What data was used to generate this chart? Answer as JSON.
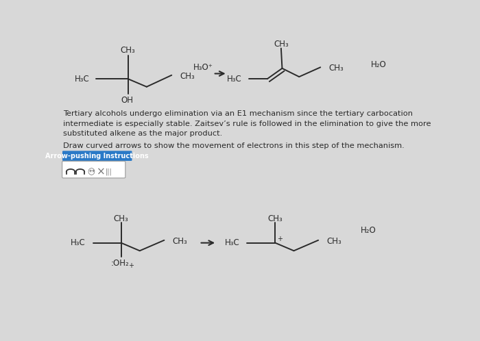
{
  "bg_color": "#d8d8d8",
  "text_color": "#2a2a2a",
  "paragraph1": "Tertiary alcohols undergo elimination via an E1 mechanism since the tertiary carbocation\nintermediate is especially stable. Zaitsev’s rule is followed in the elimination to give the more\nsubstituted alkene as the major product.",
  "paragraph2": "Draw curved arrows to show the movement of electrons in this step of the mechanism.",
  "button_text": "Arrow-pushing Instructions",
  "button_bg": "#2979c7",
  "button_text_color": "#ffffff",
  "toolbar_box_color": "#f0f0f0",
  "top_h3o_label": "H₃O⁺",
  "top_h2o_label": "H₂O",
  "bottom_h2o_label": "H₂O"
}
